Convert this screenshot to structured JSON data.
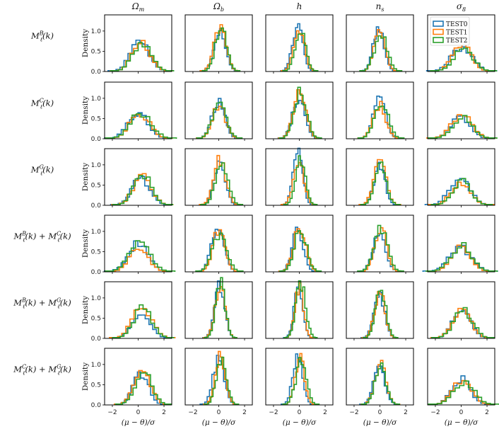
{
  "chart_data": {
    "type": "histogram-grid",
    "column_titles": [
      "Ωm",
      "Ωb",
      "h",
      "ns",
      "σ8"
    ],
    "row_labels": [
      "M_ℓ^B(k)",
      "M_ℓ^C(k)",
      "M_ℓ^G(k)",
      "M_ℓ^B(k) + M_ℓ^C(k)",
      "M_ℓ^B(k) + M_ℓ^G(k)",
      "M_ℓ^C(k) + M_ℓ^G(k)"
    ],
    "ylabel": "Density",
    "xlabel": "(μ − θ)/σ",
    "xlim": [
      -2.6,
      2.6
    ],
    "ylim": [
      0,
      1.4
    ],
    "xticks": [
      -2,
      0,
      2
    ],
    "yticks": [
      0.0,
      0.5,
      1.0
    ],
    "ytick_labels": [
      "0.0",
      "0.5",
      "1.0"
    ],
    "legend": {
      "position": "top-right",
      "panel": "row 1, σ8"
    },
    "series": [
      {
        "name": "TEST0",
        "color": "#1f77b4"
      },
      {
        "name": "TEST1",
        "color": "#ff7f0e"
      },
      {
        "name": "TEST2",
        "color": "#2ca02c"
      }
    ],
    "panel_peaks": [
      [
        0.72,
        1.1,
        1.15,
        0.98,
        0.62
      ],
      [
        0.62,
        0.9,
        1.08,
        0.92,
        0.58
      ],
      [
        0.72,
        1.05,
        1.18,
        1.05,
        0.6
      ],
      [
        0.68,
        1.0,
        1.05,
        1.0,
        0.6
      ],
      [
        0.75,
        1.3,
        1.35,
        1.15,
        0.65
      ],
      [
        0.8,
        1.22,
        1.15,
        1.0,
        0.6
      ]
    ],
    "panel_widths": [
      [
        0.75,
        0.45,
        0.4,
        0.45,
        0.75
      ],
      [
        0.75,
        0.5,
        0.45,
        0.5,
        0.75
      ],
      [
        0.7,
        0.45,
        0.4,
        0.45,
        0.75
      ],
      [
        0.75,
        0.5,
        0.45,
        0.5,
        0.8
      ],
      [
        0.7,
        0.4,
        0.35,
        0.4,
        0.75
      ],
      [
        0.65,
        0.4,
        0.4,
        0.45,
        0.75
      ]
    ],
    "panel_centers": [
      [
        0.2,
        0.1,
        0.0,
        0.0,
        0.1
      ],
      [
        0.1,
        0.0,
        0.0,
        0.0,
        0.0
      ],
      [
        0.3,
        0.1,
        0.0,
        0.0,
        0.0
      ],
      [
        0.1,
        0.0,
        0.0,
        0.0,
        0.0
      ],
      [
        0.3,
        0.1,
        0.0,
        0.0,
        0.1
      ],
      [
        0.3,
        0.1,
        0.0,
        0.0,
        0.1
      ]
    ]
  }
}
